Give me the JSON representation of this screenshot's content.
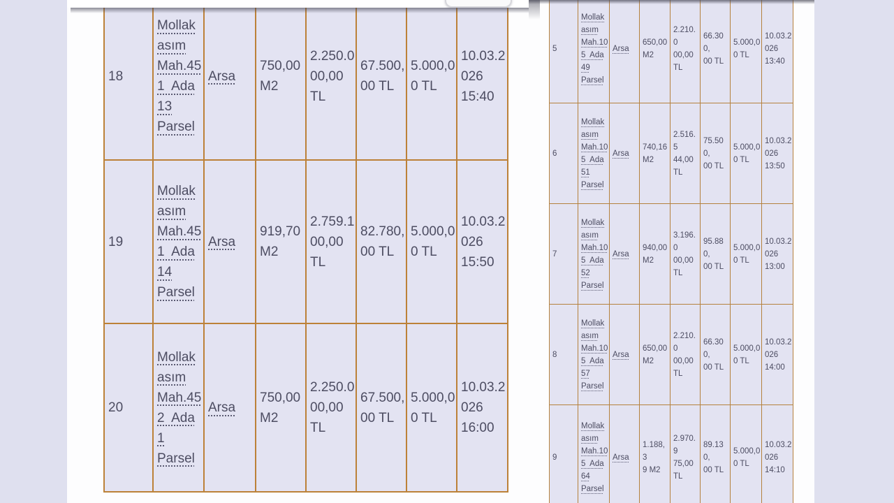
{
  "colors": {
    "viewport_background": "#dfe0ef",
    "page_background": "#fdfdfe",
    "cell_background": "#e3e3f2",
    "grid_border": "#bc8138",
    "text": "#4d4d62"
  },
  "toolbar": {
    "button_label": ""
  },
  "left_table": {
    "rows": [
      {
        "no": "18",
        "location": "Mollak\nasım\nMah.45\n1  Ada\n13\nParsel",
        "type": "Arsa",
        "area": "750,00\nM2",
        "price": "2.250.0\n00,00\nTL",
        "deposit": "67.500,\n00 TL",
        "fee": "5.000,0\n0 TL",
        "datetime": "10.03.2\n026\n15:40"
      },
      {
        "no": "19",
        "location": "Mollak\nasım\nMah.45\n1  Ada\n14\nParsel",
        "type": "Arsa",
        "area": "919,70\nM2",
        "price": "2.759.1\n00,00\nTL",
        "deposit": "82.780,\n00 TL",
        "fee": "5.000,0\n0 TL",
        "datetime": "10.03.2\n026\n15:50"
      },
      {
        "no": "20",
        "location": "Mollak\nasım\nMah.45\n2  Ada\n1\nParsel",
        "type": "Arsa",
        "area": "750,00\nM2",
        "price": "2.250.0\n00,00\nTL",
        "deposit": "67.500,\n00 TL",
        "fee": "5.000,0\n0 TL",
        "datetime": "10.03.2\n026\n16:00"
      }
    ]
  },
  "right_table": {
    "rows": [
      {
        "no": "5",
        "location": "Mollak\nasım\nMah.10\n5  Ada\n49\nParsel",
        "type": "Arsa",
        "area": "650,00\nM2",
        "price": "2.210.0\n00,00\nTL",
        "deposit": "66.300,\n00 TL",
        "fee": "5.000,0\n0 TL",
        "datetime": "10.03.2\n026\n13:40"
      },
      {
        "no": "6",
        "location": "Mollak\nasım\nMah.10\n5  Ada\n51\nParsel",
        "type": "Arsa",
        "area": "740,16\nM2",
        "price": "2.516.5\n44,00\nTL",
        "deposit": "75.500,\n00 TL",
        "fee": "5.000,0\n0 TL",
        "datetime": "10.03.2\n026\n13:50"
      },
      {
        "no": "7",
        "location": "Mollak\nasım\nMah.10\n5  Ada\n52\nParsel",
        "type": "Arsa",
        "area": "940,00\nM2",
        "price": "3.196.0\n00,00\nTL",
        "deposit": "95.880,\n00 TL",
        "fee": "5.000,0\n0 TL",
        "datetime": "10.03.2\n026\n13:00"
      },
      {
        "no": "8",
        "location": "Mollak\nasım\nMah.10\n5  Ada\n57\nParsel",
        "type": "Arsa",
        "area": "650,00\nM2",
        "price": "2.210.0\n00,00\nTL",
        "deposit": "66.300,\n00 TL",
        "fee": "5.000,0\n0 TL",
        "datetime": "10.03.2\n026\n14:00"
      },
      {
        "no": "9",
        "location": "Mollak\nasım\nMah.10\n5  Ada\n64\nParsel",
        "type": "Arsa",
        "area": "1.188,3\n9 M2",
        "price": "2.970.9\n75,00\nTL",
        "deposit": "89.130,\n00 TL",
        "fee": "5.000,0\n0 TL",
        "datetime": "10.03.2\n026\n14:10"
      }
    ]
  }
}
